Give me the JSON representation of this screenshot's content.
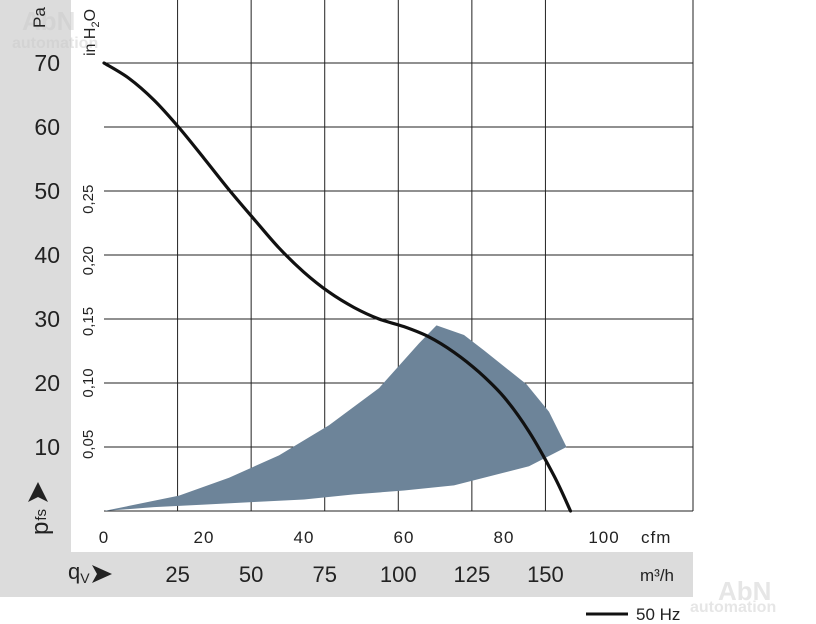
{
  "chart_data": {
    "type": "line",
    "y_primary": {
      "unit": "Pa",
      "ticks": [
        10,
        20,
        30,
        40,
        50,
        60,
        70
      ]
    },
    "y_secondary": {
      "unit_main": "in H",
      "unit_sub": "2",
      "unit_end": "O",
      "ticks": [
        "0,05",
        "0,10",
        "0,15",
        "0,20",
        "0,25"
      ]
    },
    "y_symbol": {
      "main": "p",
      "sub": "fs"
    },
    "x_primary": {
      "unit": "cfm",
      "ticks": [
        0,
        20,
        40,
        60,
        80,
        100
      ]
    },
    "x_secondary": {
      "unit": "m³/h",
      "ticks": [
        25,
        50,
        75,
        100,
        125,
        150
      ]
    },
    "x_symbol": {
      "main": "q",
      "sub": "V"
    },
    "legend": {
      "label": "50 Hz",
      "placement": "bottom-right"
    },
    "series": [
      {
        "name": "50 Hz",
        "color": "#111111",
        "points": [
          [
            0,
            70
          ],
          [
            5,
            67.6
          ],
          [
            10,
            64.2
          ],
          [
            15,
            59.9
          ],
          [
            20,
            55.1
          ],
          [
            25,
            50.2
          ],
          [
            30,
            45.6
          ],
          [
            35,
            41.1
          ],
          [
            40,
            37.3
          ],
          [
            45,
            34.2
          ],
          [
            50,
            31.8
          ],
          [
            55,
            30.0
          ],
          [
            60,
            28.8
          ],
          [
            65,
            27.2
          ],
          [
            70,
            24.8
          ],
          [
            75,
            21.7
          ],
          [
            80,
            17.8
          ],
          [
            85,
            12.4
          ],
          [
            90,
            5.5
          ],
          [
            93.3,
            0
          ]
        ]
      }
    ],
    "operating_region": {
      "color": "#6d8499",
      "outline": [
        [
          0,
          0
        ],
        [
          15,
          2.4
        ],
        [
          25,
          5.2
        ],
        [
          35,
          8.7
        ],
        [
          45,
          13.4
        ],
        [
          55,
          19.2
        ],
        [
          63,
          26.2
        ],
        [
          66.5,
          29.0
        ],
        [
          72,
          27.5
        ],
        [
          76,
          25.1
        ],
        [
          84.5,
          19.8
        ],
        [
          89,
          15.5
        ],
        [
          92.5,
          10.0
        ],
        [
          85,
          7.0
        ],
        [
          80,
          6.0
        ],
        [
          70,
          4.0
        ],
        [
          60,
          3.2
        ],
        [
          50,
          2.6
        ],
        [
          40,
          1.8
        ],
        [
          30,
          1.4
        ],
        [
          20,
          1.0
        ],
        [
          10,
          0.6
        ]
      ]
    },
    "xlim": [
      0,
      118
    ],
    "ylim": [
      0,
      80
    ],
    "grid": true
  },
  "watermark": {
    "brand": "AbN",
    "sub": "automation"
  }
}
